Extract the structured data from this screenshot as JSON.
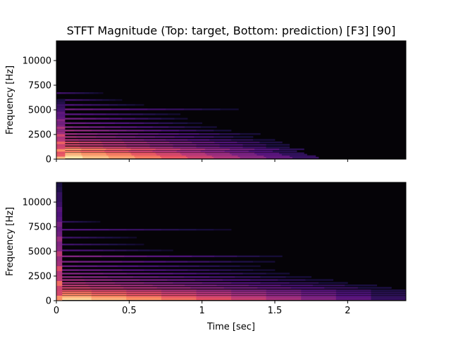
{
  "chart_data": {
    "type": "heatmap",
    "title": "STFT Magnitude (Top: target, Bottom: prediction) [F3] [90]",
    "colormap": "magma",
    "background_color": "#050307",
    "panels": [
      {
        "name": "target",
        "ylabel": "Frequency [Hz]",
        "xlabel": "",
        "xlim": [
          0,
          2.4
        ],
        "ylim": [
          0,
          12000
        ],
        "xticks": [
          0,
          0.5,
          1,
          1.5,
          2
        ],
        "xtick_labels": [
          "",
          "",
          "",
          "",
          ""
        ],
        "yticks": [
          0,
          2500,
          5000,
          7500,
          10000
        ],
        "ytick_labels": [
          "0",
          "2500",
          "5000",
          "7500",
          "10000"
        ],
        "harmonic_lines": [
          {
            "f": 150,
            "end": 1.8,
            "i": 0.95
          },
          {
            "f": 300,
            "end": 1.78,
            "i": 0.92
          },
          {
            "f": 450,
            "end": 1.72,
            "i": 0.85
          },
          {
            "f": 600,
            "end": 1.7,
            "i": 0.82
          },
          {
            "f": 800,
            "end": 1.65,
            "i": 0.7
          },
          {
            "f": 1000,
            "end": 1.7,
            "i": 0.78
          },
          {
            "f": 1200,
            "end": 1.6,
            "i": 0.62
          },
          {
            "f": 1450,
            "end": 1.6,
            "i": 0.55
          },
          {
            "f": 1700,
            "end": 1.55,
            "i": 0.58
          },
          {
            "f": 1950,
            "end": 1.5,
            "i": 0.45
          },
          {
            "f": 2250,
            "end": 1.35,
            "i": 0.45
          },
          {
            "f": 2550,
            "end": 1.4,
            "i": 0.4
          },
          {
            "f": 2900,
            "end": 1.2,
            "i": 0.42
          },
          {
            "f": 3250,
            "end": 1.1,
            "i": 0.35
          },
          {
            "f": 3650,
            "end": 1.0,
            "i": 0.3
          },
          {
            "f": 4100,
            "end": 0.9,
            "i": 0.32
          },
          {
            "f": 4550,
            "end": 0.85,
            "i": 0.25
          },
          {
            "f": 5050,
            "end": 1.25,
            "i": 0.3
          },
          {
            "f": 5500,
            "end": 0.6,
            "i": 0.22
          },
          {
            "f": 6000,
            "end": 0.45,
            "i": 0.2
          },
          {
            "f": 6700,
            "end": 0.32,
            "i": 0.18
          }
        ],
        "onset": {
          "end": 0.06,
          "fmax": 6100,
          "i": 0.85
        }
      },
      {
        "name": "prediction",
        "ylabel": "Frequency [Hz]",
        "xlabel": "Time [sec]",
        "xlim": [
          0,
          2.4
        ],
        "ylim": [
          0,
          12000
        ],
        "xticks": [
          0,
          0.5,
          1,
          1.5,
          2
        ],
        "xtick_labels": [
          "0",
          "0.5",
          "1",
          "1.5",
          "2"
        ],
        "yticks": [
          0,
          2500,
          5000,
          7500,
          10000
        ],
        "ytick_labels": [
          "0",
          "2500",
          "5000",
          "7500",
          "10000"
        ],
        "harmonic_lines": [
          {
            "f": 150,
            "end": 2.4,
            "i": 0.92
          },
          {
            "f": 300,
            "end": 2.4,
            "i": 0.88
          },
          {
            "f": 450,
            "end": 2.4,
            "i": 0.8
          },
          {
            "f": 650,
            "end": 2.4,
            "i": 0.72
          },
          {
            "f": 850,
            "end": 2.4,
            "i": 0.68
          },
          {
            "f": 1050,
            "end": 2.4,
            "i": 0.6
          },
          {
            "f": 1300,
            "end": 2.3,
            "i": 0.55
          },
          {
            "f": 1550,
            "end": 2.2,
            "i": 0.5
          },
          {
            "f": 1800,
            "end": 2.0,
            "i": 0.45
          },
          {
            "f": 2100,
            "end": 1.9,
            "i": 0.42
          },
          {
            "f": 2400,
            "end": 1.75,
            "i": 0.38
          },
          {
            "f": 2750,
            "end": 1.6,
            "i": 0.35
          },
          {
            "f": 3100,
            "end": 1.5,
            "i": 0.3
          },
          {
            "f": 3500,
            "end": 1.4,
            "i": 0.28
          },
          {
            "f": 3950,
            "end": 1.5,
            "i": 0.32
          },
          {
            "f": 4500,
            "end": 1.55,
            "i": 0.35
          },
          {
            "f": 5100,
            "end": 0.8,
            "i": 0.22
          },
          {
            "f": 5700,
            "end": 0.6,
            "i": 0.18
          },
          {
            "f": 6400,
            "end": 0.55,
            "i": 0.18
          },
          {
            "f": 7200,
            "end": 1.2,
            "i": 0.22
          },
          {
            "f": 8000,
            "end": 0.3,
            "i": 0.15
          }
        ],
        "onset": {
          "end": 0.04,
          "fmax": 12000,
          "i": 0.75
        }
      }
    ]
  }
}
